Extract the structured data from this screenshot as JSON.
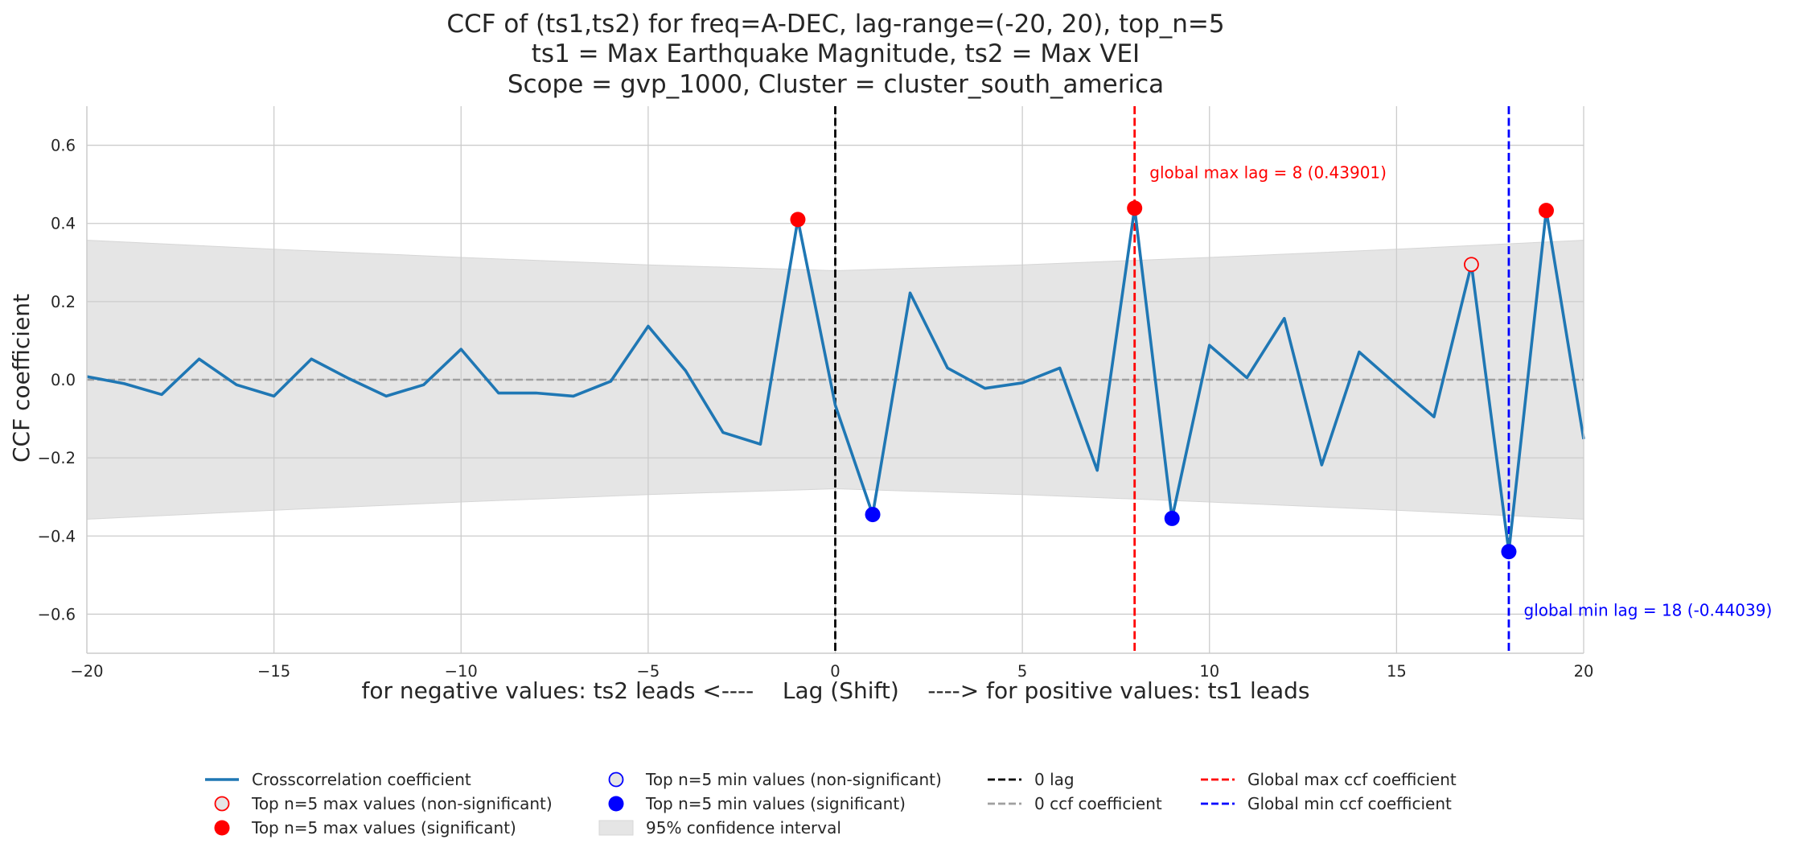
{
  "chart_data": {
    "type": "line",
    "title": [
      "CCF of (ts1,ts2) for freq=A-DEC, lag-range=(-20, 20), top_n=5",
      "ts1 = Max Earthquake Magnitude, ts2 = Max VEI",
      "Scope = gvp_1000, Cluster = cluster_south_america"
    ],
    "xlabel": "for negative values: ts2 leads <----    Lag (Shift)    ----> for positive values: ts1 leads",
    "ylabel": "CCF coefficient",
    "xlim": [
      -20,
      20
    ],
    "ylim": [
      -0.7,
      0.7
    ],
    "xticks": [
      -20,
      -15,
      -10,
      -5,
      0,
      5,
      10,
      15,
      20
    ],
    "xtick_labels": [
      "−20",
      "−15",
      "−10",
      "−5",
      "0",
      "5",
      "10",
      "15",
      "20"
    ],
    "yticks": [
      -0.6,
      -0.4,
      -0.2,
      0.0,
      0.2,
      0.4,
      0.6
    ],
    "ytick_labels": [
      "−0.6",
      "−0.4",
      "−0.2",
      "0.0",
      "0.2",
      "0.4",
      "0.6"
    ],
    "grid": true,
    "x": [
      -20,
      -19,
      -18,
      -17,
      -16,
      -15,
      -14,
      -13,
      -12,
      -11,
      -10,
      -9,
      -8,
      -7,
      -6,
      -5,
      -4,
      -3,
      -2,
      -1,
      0,
      1,
      2,
      3,
      4,
      5,
      6,
      7,
      8,
      9,
      10,
      11,
      12,
      13,
      14,
      15,
      16,
      17,
      18,
      19,
      20
    ],
    "series": [
      {
        "name": "Crosscorrelation coefficient",
        "color": "#1f77b4",
        "values": [
          0.008,
          -0.01,
          -0.038,
          0.053,
          -0.013,
          -0.042,
          0.053,
          0.003,
          -0.042,
          -0.013,
          0.078,
          -0.034,
          -0.034,
          -0.042,
          -0.004,
          0.137,
          0.023,
          -0.135,
          -0.165,
          0.41,
          -0.065,
          -0.345,
          0.222,
          0.03,
          -0.022,
          -0.008,
          0.03,
          -0.232,
          0.439,
          -0.355,
          0.088,
          0.005,
          0.157,
          -0.218,
          0.071,
          -0.013,
          -0.095,
          0.295,
          -0.44,
          0.433,
          -0.152
        ]
      }
    ],
    "confidence_interval": {
      "name": "95% confidence interval",
      "color": "#e5e5e5",
      "x": [
        -20,
        -15,
        -10,
        -5,
        0,
        5,
        10,
        15,
        20
      ],
      "upper": [
        0.357,
        0.334,
        0.313,
        0.294,
        0.279,
        0.294,
        0.313,
        0.334,
        0.357
      ]
    },
    "top_max_significant": {
      "name": "Top n=5 max values (significant)",
      "color": "#ff0000",
      "points": [
        [
          -1,
          0.41
        ],
        [
          8,
          0.439
        ],
        [
          19,
          0.433
        ]
      ]
    },
    "top_max_non_significant": {
      "name": "Top n=5 max values (non-significant)",
      "color": "#ff0000",
      "points": [
        [
          17,
          0.295
        ]
      ]
    },
    "top_min_significant": {
      "name": "Top n=5 min values (significant)",
      "color": "#0000ff",
      "points": [
        [
          1,
          -0.345
        ],
        [
          9,
          -0.355
        ],
        [
          18,
          -0.44
        ]
      ]
    },
    "top_min_non_significant": {
      "name": "Top n=5 min values (non-significant)",
      "color": "#0000ff",
      "points": []
    },
    "vlines": [
      {
        "name": "0 lag",
        "x": 0,
        "color": "#000000"
      },
      {
        "name": "Global max ccf coefficient",
        "x": 8,
        "color": "#ff0000"
      },
      {
        "name": "Global min ccf coefficient",
        "x": 18,
        "color": "#0000ff"
      }
    ],
    "hline": {
      "name": "0 ccf coefficient",
      "y": 0,
      "color": "#a0a0a0"
    },
    "annotations": [
      {
        "text": "global max lag = 8 (0.43901)",
        "x": 8.4,
        "y": 0.53,
        "color": "#ff0000"
      },
      {
        "text": "global min lag = 18 (-0.44039)",
        "x": 18.4,
        "y": -0.59,
        "color": "#0000ff"
      }
    ],
    "legend": {
      "placement": "bottom-center",
      "entries": [
        "Crosscorrelation coefficient",
        "Top n=5 max values (non-significant)",
        "Top n=5 max values (significant)",
        "Top n=5 min values (non-significant)",
        "Top n=5 min values (significant)",
        "95% confidence interval",
        "0 lag",
        "0 ccf coefficient",
        "Global max ccf coefficient",
        "Global min ccf coefficient"
      ]
    }
  }
}
